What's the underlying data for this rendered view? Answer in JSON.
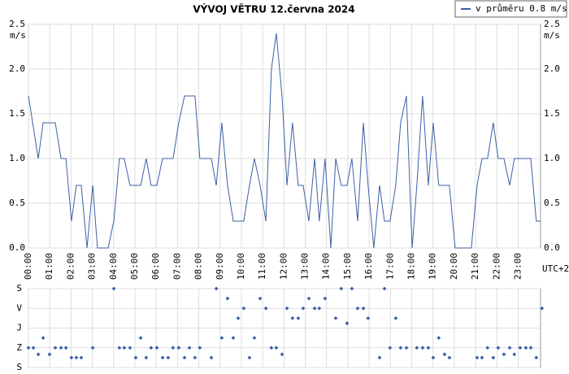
{
  "chart_data": [
    {
      "type": "line",
      "title": "VÝVOJ VĚTRU  12.června 2024",
      "y_label": "m/s",
      "y2_label": "m/s",
      "x_label": "UTC+2",
      "legend": "top-right",
      "grid": true,
      "x": [
        0,
        0.46,
        0.69,
        1.26,
        1.53,
        1.76,
        2.02,
        2.25,
        2.48,
        2.75,
        3.02,
        3.24,
        3.74,
        4.01,
        4.27,
        4.5,
        4.77,
        5.27,
        5.53,
        5.76,
        6.03,
        6.3,
        6.79,
        7.06,
        7.33,
        7.82,
        8.05,
        8.59,
        8.82,
        9.08,
        9.35,
        9.62,
        10.11,
        10.38,
        10.61,
        10.88,
        11.15,
        11.41,
        11.64,
        11.91,
        12.14,
        12.4,
        12.67,
        12.9,
        13.17,
        13.44,
        13.66,
        13.93,
        14.2,
        14.43,
        14.69,
        14.96,
        15.19,
        15.46,
        15.73,
        15.95,
        16.22,
        16.49,
        16.72,
        16.98,
        17.25,
        17.48,
        17.75,
        18.02,
        18.24,
        18.51,
        18.78,
        19.01,
        19.27,
        19.77,
        20.04,
        20.8,
        21.07,
        21.3,
        21.56,
        21.83,
        22.06,
        22.33,
        22.6,
        22.82,
        23.59,
        23.85,
        24.05
      ],
      "series": [
        {
          "name": "v průměru 0.8 m/s",
          "color": "#3b5fa6",
          "values": [
            1.7,
            1.0,
            1.4,
            1.4,
            1.0,
            1.0,
            0.3,
            0.7,
            0.7,
            0,
            0.7,
            0,
            0,
            0.3,
            1.0,
            1.0,
            0.7,
            0.7,
            1.0,
            0.7,
            0.7,
            1.0,
            1.0,
            1.4,
            1.7,
            1.7,
            1.0,
            1.0,
            0.7,
            1.4,
            0.7,
            0.3,
            0.3,
            0.7,
            1.0,
            0.7,
            0.3,
            2.0,
            2.4,
            1.7,
            0.7,
            1.4,
            0.7,
            0.7,
            0.3,
            1.0,
            0.3,
            1.0,
            0,
            1.0,
            0.7,
            0.7,
            1.0,
            0.3,
            1.4,
            0.7,
            0,
            0.7,
            0.3,
            0.3,
            0.7,
            1.4,
            1.7,
            0,
            0.7,
            1.7,
            0.7,
            1.4,
            0.7,
            0.7,
            0,
            0,
            0.7,
            1.0,
            1.0,
            1.4,
            1.0,
            1.0,
            0.7,
            1.0,
            1.0,
            0.3,
            0.3
          ]
        }
      ],
      "xlim": [
        0,
        24.05
      ],
      "xticks": [
        {
          "value": 0,
          "label": "00:00"
        },
        {
          "value": 1,
          "label": "01:00"
        },
        {
          "value": 2,
          "label": "02:00"
        },
        {
          "value": 3,
          "label": "03:00"
        },
        {
          "value": 4,
          "label": "04:00"
        },
        {
          "value": 5,
          "label": "05:00"
        },
        {
          "value": 6,
          "label": "06:00"
        },
        {
          "value": 7,
          "label": "07:00"
        },
        {
          "value": 8,
          "label": "08:00"
        },
        {
          "value": 9,
          "label": "09:00"
        },
        {
          "value": 10,
          "label": "10:00"
        },
        {
          "value": 11,
          "label": "11:00"
        },
        {
          "value": 12,
          "label": "12:00"
        },
        {
          "value": 13,
          "label": "13:00"
        },
        {
          "value": 14,
          "label": "14:00"
        },
        {
          "value": 15,
          "label": "15:00"
        },
        {
          "value": 16,
          "label": "16:00"
        },
        {
          "value": 17,
          "label": "17:00"
        },
        {
          "value": 18,
          "label": "18:00"
        },
        {
          "value": 19,
          "label": "19:00"
        },
        {
          "value": 20,
          "label": "20:00"
        },
        {
          "value": 21,
          "label": "21:00"
        },
        {
          "value": 22,
          "label": "22:00"
        },
        {
          "value": 23,
          "label": "23:00"
        }
      ],
      "ylim": [
        0,
        2.5
      ],
      "yticks": [
        {
          "value": 0,
          "label": "0.0"
        },
        0.5,
        {
          "value": 1,
          "label": "1.0"
        },
        1.5,
        {
          "value": 2,
          "label": "2.0"
        },
        2.5
      ]
    },
    {
      "type": "scatter",
      "color": "#3b5fa6",
      "grid": true,
      "x": [
        0,
        0.23,
        0.46,
        0.69,
        0.99,
        1.26,
        1.53,
        1.76,
        2.02,
        2.25,
        2.48,
        3.02,
        4.01,
        4.27,
        4.5,
        4.77,
        5.04,
        5.27,
        5.53,
        5.76,
        6.03,
        6.3,
        6.56,
        6.79,
        7.06,
        7.33,
        7.56,
        7.82,
        8.05,
        8.59,
        8.82,
        9.08,
        9.35,
        9.62,
        9.85,
        10.11,
        10.38,
        10.61,
        10.88,
        11.15,
        11.41,
        11.64,
        11.91,
        12.14,
        12.4,
        12.67,
        12.9,
        13.17,
        13.44,
        13.66,
        13.93,
        14.43,
        14.69,
        14.96,
        15.19,
        15.46,
        15.73,
        15.95,
        16.49,
        16.72,
        16.98,
        17.25,
        17.48,
        17.75,
        18.24,
        18.51,
        18.78,
        19.01,
        19.27,
        19.54,
        19.77,
        21.07,
        21.3,
        21.56,
        21.83,
        22.06,
        22.33,
        22.6,
        22.82,
        23.09,
        23.36,
        23.59,
        23.85,
        24.12
      ],
      "values": [
        270,
        270,
        300,
        225,
        300,
        270,
        270,
        270,
        315,
        315,
        315,
        270,
        0,
        270,
        270,
        270,
        315,
        225,
        315,
        270,
        270,
        315,
        315,
        270,
        270,
        315,
        270,
        315,
        270,
        315,
        0,
        225,
        45,
        225,
        135,
        90,
        315,
        225,
        45,
        90,
        270,
        270,
        300,
        90,
        135,
        135,
        90,
        45,
        90,
        90,
        45,
        135,
        0,
        158,
        0,
        90,
        90,
        135,
        315,
        0,
        270,
        135,
        270,
        270,
        270,
        270,
        270,
        315,
        225,
        300,
        315,
        315,
        315,
        270,
        315,
        270,
        300,
        270,
        300,
        270,
        270,
        270,
        315,
        90
      ],
      "xlim": [
        0,
        24.05
      ],
      "ylim": [
        0,
        360
      ],
      "yticks": [
        {
          "value": 0,
          "label": "S"
        },
        {
          "value": 90,
          "label": "V"
        },
        {
          "value": 180,
          "label": "J"
        },
        {
          "value": 270,
          "label": "Z"
        },
        {
          "value": 360,
          "label": "S"
        }
      ]
    }
  ]
}
